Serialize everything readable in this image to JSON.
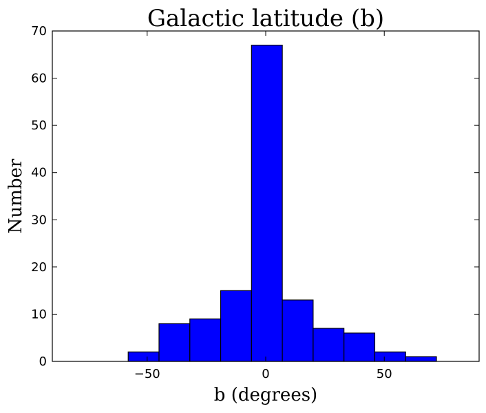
{
  "chart_data": {
    "type": "bar",
    "title": "Galactic latitude (b)",
    "xlabel": "b (degrees)",
    "ylabel": "Number",
    "xlim": [
      -90,
      90
    ],
    "ylim": [
      0,
      70
    ],
    "grid": false,
    "legend": "none",
    "bar_color": "#0000ff",
    "bin_edges": [
      -58,
      -45,
      -32,
      -19,
      -6,
      7,
      20,
      33,
      46,
      59,
      72
    ],
    "values": [
      2,
      8,
      9,
      15,
      67,
      13,
      7,
      6,
      2,
      1
    ],
    "x_ticks": [
      -50,
      0,
      50
    ],
    "x_tick_labels": [
      "−50",
      "0",
      "50"
    ],
    "y_ticks": [
      0,
      10,
      20,
      30,
      40,
      50,
      60,
      70
    ],
    "y_tick_labels": [
      "0",
      "10",
      "20",
      "30",
      "40",
      "50",
      "60",
      "70"
    ]
  }
}
